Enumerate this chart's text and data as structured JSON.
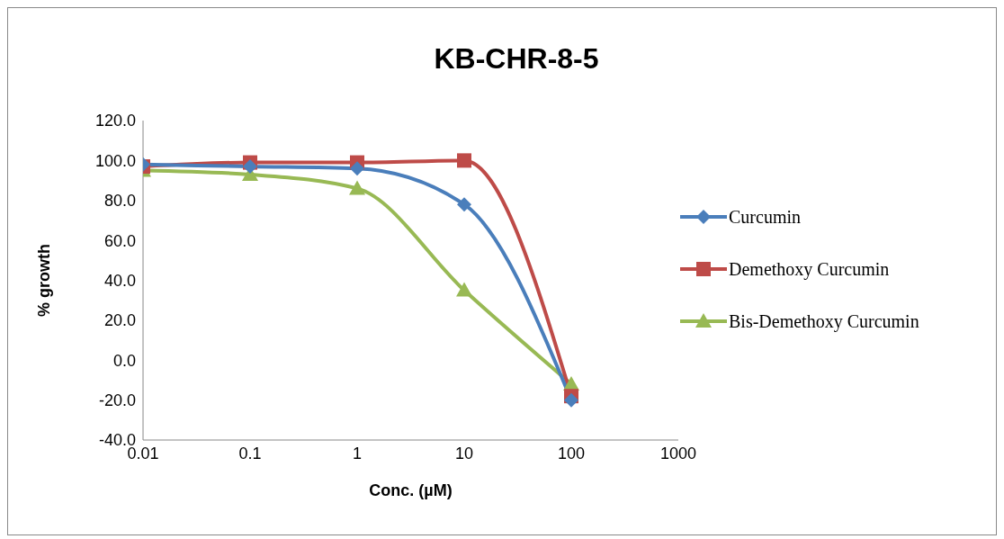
{
  "chart_data": {
    "type": "line",
    "title": "KB-CHR-8-5",
    "xlabel": "Conc. (µM)",
    "ylabel": "% growth",
    "x": [
      0.01,
      0.1,
      1,
      10,
      100
    ],
    "series": [
      {
        "name": "Curcumin",
        "color": "#4a7ebb",
        "marker": "diamond",
        "values": [
          98,
          97,
          96,
          78,
          -20
        ]
      },
      {
        "name": "Demethoxy Curcumin",
        "color": "#be4b48",
        "marker": "square",
        "values": [
          97,
          99,
          99,
          100,
          -18
        ]
      },
      {
        "name": "Bis-Demethoxy Curcumin",
        "color": "#98b954",
        "marker": "triangle",
        "values": [
          95,
          93,
          86,
          35,
          -12
        ]
      }
    ],
    "log": "x",
    "xlim": [
      0.01,
      1000
    ],
    "xticks": [
      0.01,
      0.1,
      1,
      10,
      100,
      1000
    ],
    "ylim": [
      -40,
      120
    ],
    "yticks": [
      {
        "value": -40,
        "label": "-40.0"
      },
      {
        "value": -20,
        "label": "-20.0"
      },
      {
        "value": 0,
        "label": "0.0"
      },
      {
        "value": 20,
        "label": "20.0"
      },
      {
        "value": 40,
        "label": "40.0"
      },
      {
        "value": 60,
        "label": "60.0"
      },
      {
        "value": 80,
        "label": "80.0"
      },
      {
        "value": 100,
        "label": "100.0"
      },
      {
        "value": 120,
        "label": "120.0"
      }
    ],
    "grid": false,
    "legend": "right",
    "line_style": "solid"
  }
}
